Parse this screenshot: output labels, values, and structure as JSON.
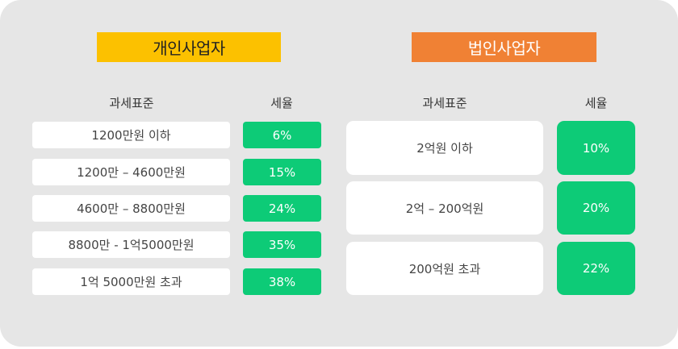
{
  "personal": {
    "title": "개인사업자",
    "headers": {
      "base": "과세표준",
      "rate": "세율"
    },
    "rows": [
      {
        "base": "1200만원 이하",
        "rate": "6%"
      },
      {
        "base": "1200만 – 4600만원",
        "rate": "15%"
      },
      {
        "base": "4600만 – 8800만원",
        "rate": "24%"
      },
      {
        "base": "8800만 - 1억5000만원",
        "rate": "35%"
      },
      {
        "base": "1억 5000만원 초과",
        "rate": "38%"
      }
    ]
  },
  "corporate": {
    "title": "법인사업자",
    "headers": {
      "base": "과세표준",
      "rate": "세율"
    },
    "rows": [
      {
        "base": "2억원 이하",
        "rate": "10%"
      },
      {
        "base": "2억 – 200억원",
        "rate": "20%"
      },
      {
        "base": "200억원 초과",
        "rate": "22%"
      }
    ]
  },
  "colors": {
    "background": "#e6e6e6",
    "personal_title": "#fcc100",
    "corporate_title": "#f08134",
    "rate_green": "#0dcb77"
  }
}
